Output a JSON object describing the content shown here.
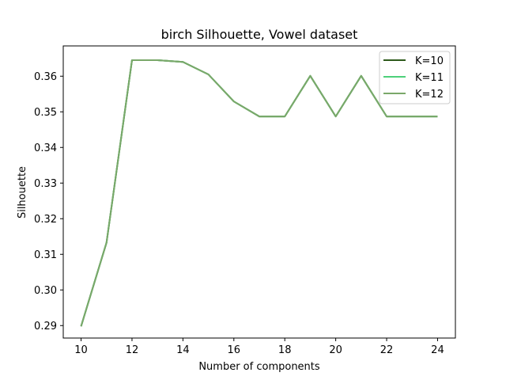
{
  "chart_data": {
    "type": "line",
    "title": "birch Silhouette, Vowel dataset",
    "xlabel": "Number of components",
    "ylabel": "Silhouette",
    "x": [
      10,
      11,
      12,
      13,
      14,
      15,
      16,
      17,
      18,
      19,
      20,
      21,
      22,
      23,
      24
    ],
    "xlim": [
      9.3,
      24.7
    ],
    "ylim": [
      0.2865,
      0.3685
    ],
    "xticks": [
      10,
      12,
      14,
      16,
      18,
      20,
      22,
      24
    ],
    "yticks": [
      0.29,
      0.3,
      0.31,
      0.32,
      0.33,
      0.34,
      0.35,
      0.36
    ],
    "ytick_labels": [
      "0.29",
      "0.30",
      "0.31",
      "0.32",
      "0.33",
      "0.34",
      "0.35",
      "0.36"
    ],
    "grid": false,
    "legend_position": "top-right",
    "series": [
      {
        "name": "K=10",
        "color": "#2d5a1b",
        "values": [
          0.2898,
          0.3133,
          0.3645,
          0.3645,
          0.364,
          0.3605,
          0.3529,
          0.3487,
          0.3487,
          0.3601,
          0.3487,
          0.3601,
          0.3487,
          0.3487,
          0.3487
        ]
      },
      {
        "name": "K=11",
        "color": "#4dd07a",
        "values": [
          0.2898,
          0.3133,
          0.3645,
          0.3645,
          0.364,
          0.3605,
          0.3529,
          0.3487,
          0.3487,
          0.3601,
          0.3487,
          0.3601,
          0.3487,
          0.3487,
          0.3487
        ]
      },
      {
        "name": "K=12",
        "color": "#7aa86a",
        "values": [
          0.2898,
          0.3133,
          0.3645,
          0.3645,
          0.364,
          0.3605,
          0.3529,
          0.3487,
          0.3487,
          0.3601,
          0.3487,
          0.3601,
          0.3487,
          0.3487,
          0.3487
        ]
      }
    ]
  }
}
